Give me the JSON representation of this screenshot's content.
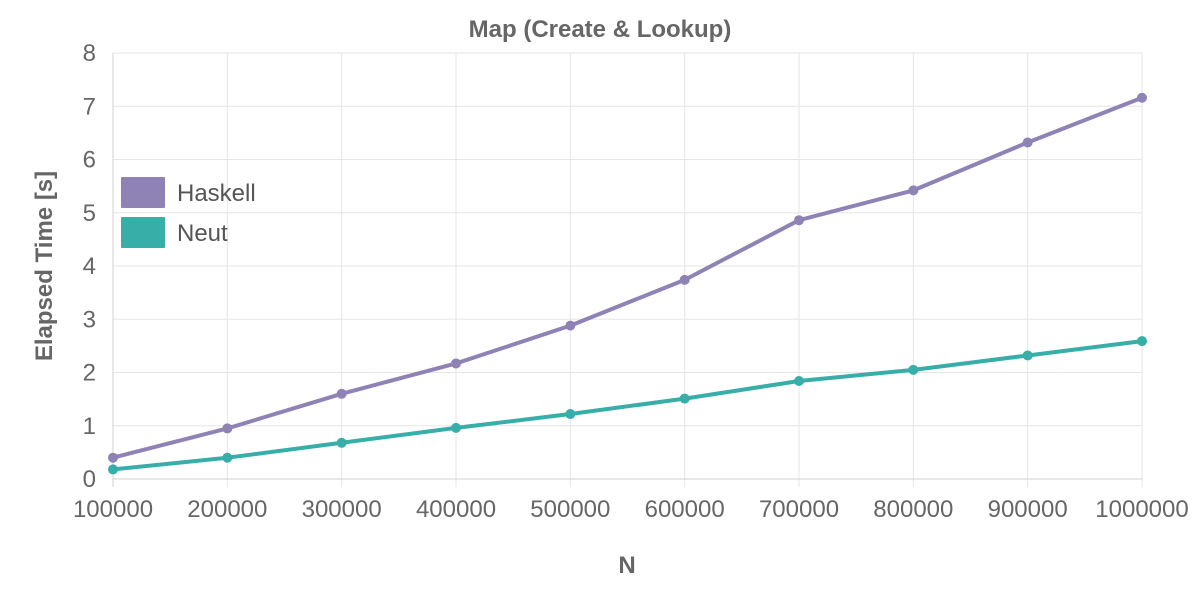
{
  "chart_data": {
    "type": "line",
    "title": "Map (Create & Lookup)",
    "xlabel": "N",
    "ylabel": "Elapsed Time [s]",
    "x": [
      100000,
      200000,
      300000,
      400000,
      500000,
      600000,
      700000,
      800000,
      900000,
      1000000
    ],
    "x_tick_labels": [
      "100000",
      "200000",
      "300000",
      "400000",
      "500000",
      "600000",
      "700000",
      "800000",
      "900000",
      "1000000"
    ],
    "y_ticks": [
      0,
      1,
      2,
      3,
      4,
      5,
      6,
      7,
      8
    ],
    "y_tick_labels": [
      "0",
      "1",
      "2",
      "3",
      "4",
      "5",
      "6",
      "7",
      "8"
    ],
    "xlim": [
      100000,
      1000000
    ],
    "ylim": [
      0,
      8
    ],
    "grid": true,
    "legend_position": "left",
    "series": [
      {
        "name": "Haskell",
        "color": "#8f83b5",
        "values": [
          0.4,
          0.95,
          1.6,
          2.17,
          2.88,
          3.74,
          4.86,
          5.42,
          6.32,
          7.16
        ]
      },
      {
        "name": "Neut",
        "color": "#38aea9",
        "values": [
          0.18,
          0.4,
          0.68,
          0.96,
          1.22,
          1.51,
          1.84,
          2.05,
          2.32,
          2.59
        ]
      }
    ]
  }
}
